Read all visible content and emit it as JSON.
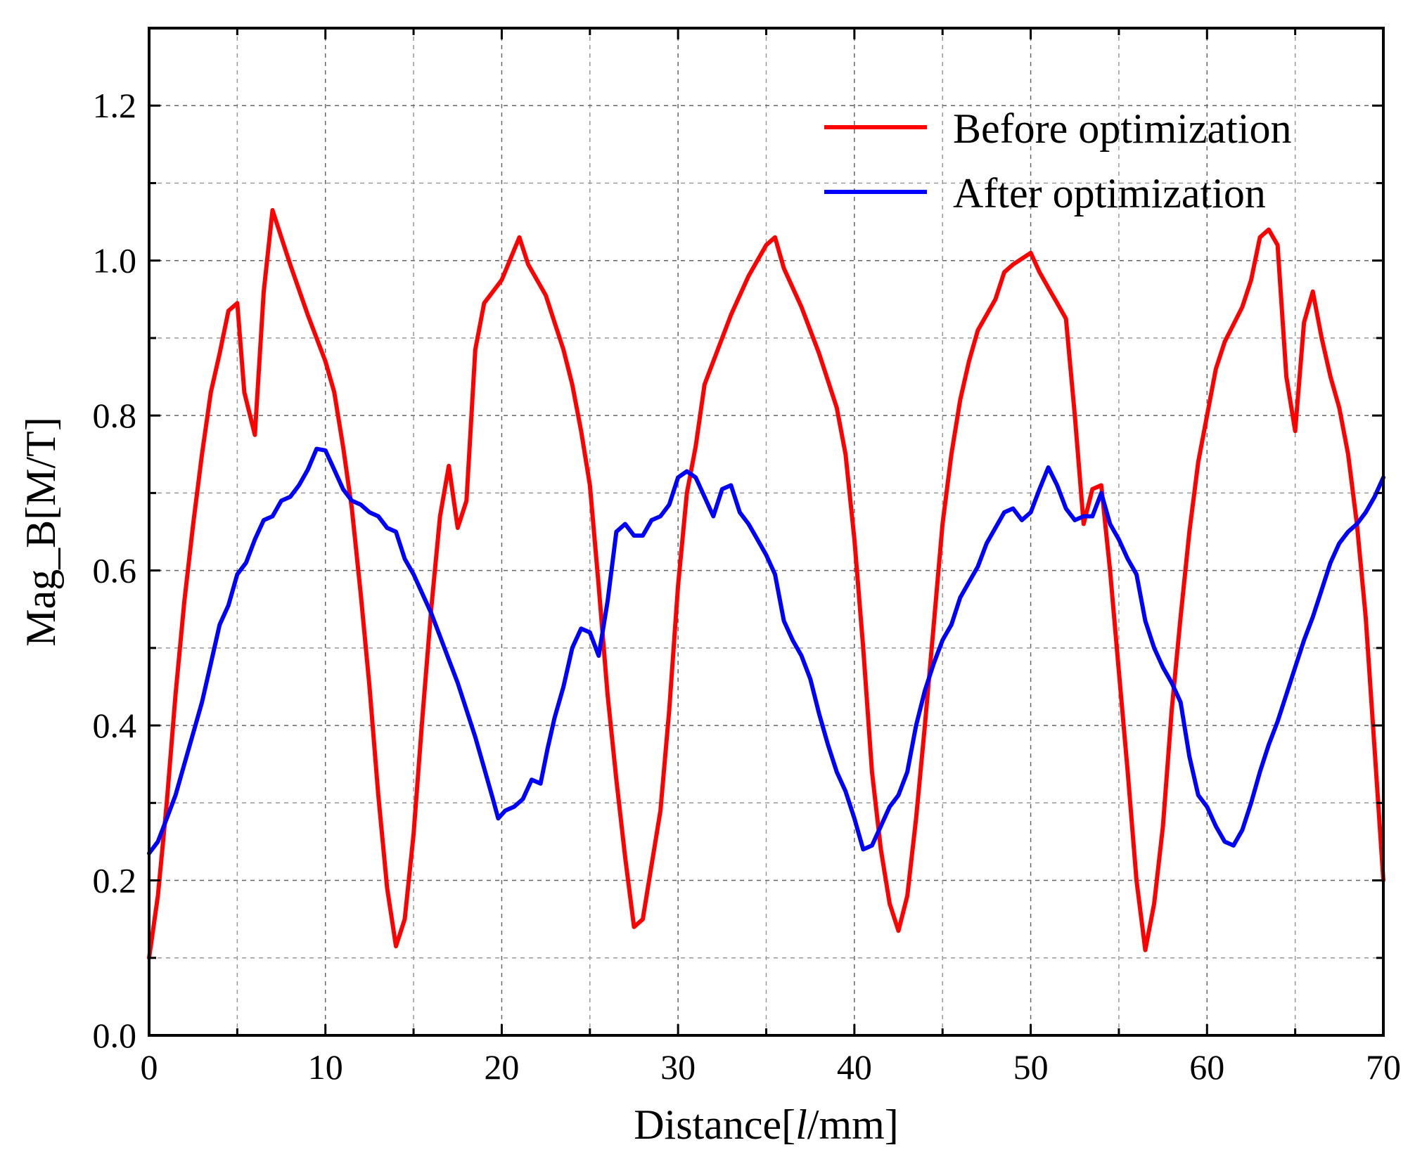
{
  "chart_data": {
    "type": "line",
    "title": "",
    "xlabel_prefix": "Distance[",
    "xlabel_italic": "l",
    "xlabel_suffix": "/mm]",
    "ylabel": "Mag_B[M/T]",
    "xlim": [
      0,
      70
    ],
    "ylim": [
      0,
      1.3
    ],
    "grid": true,
    "legend_position": "top-right",
    "x_ticks": [
      "0",
      "10",
      "20",
      "30",
      "40",
      "50",
      "60",
      "70"
    ],
    "x_tick_values": [
      0,
      10,
      20,
      30,
      40,
      50,
      60,
      70
    ],
    "y_ticks": [
      "0.0",
      "0.2",
      "0.4",
      "0.6",
      "0.8",
      "1.0",
      "1.2"
    ],
    "y_tick_values": [
      0,
      0.2,
      0.4,
      0.6,
      0.8,
      1.0,
      1.2
    ],
    "series": [
      {
        "name": "Before optimization",
        "color": "#ff0000",
        "points": [
          [
            0,
            0.1
          ],
          [
            0.5,
            0.18
          ],
          [
            1,
            0.3
          ],
          [
            1.5,
            0.44
          ],
          [
            2,
            0.56
          ],
          [
            2.5,
            0.66
          ],
          [
            3,
            0.75
          ],
          [
            3.5,
            0.83
          ],
          [
            4,
            0.88
          ],
          [
            4.5,
            0.935
          ],
          [
            5,
            0.945
          ],
          [
            5.4,
            0.83
          ],
          [
            6,
            0.775
          ],
          [
            6.5,
            0.96
          ],
          [
            7,
            1.065
          ],
          [
            7.5,
            1.03
          ],
          [
            8,
            0.995
          ],
          [
            9,
            0.93
          ],
          [
            10,
            0.87
          ],
          [
            10.5,
            0.83
          ],
          [
            11,
            0.76
          ],
          [
            11.5,
            0.68
          ],
          [
            12,
            0.57
          ],
          [
            12.5,
            0.45
          ],
          [
            13,
            0.31
          ],
          [
            13.5,
            0.19
          ],
          [
            14,
            0.115
          ],
          [
            14.5,
            0.15
          ],
          [
            15,
            0.26
          ],
          [
            15.5,
            0.41
          ],
          [
            16,
            0.55
          ],
          [
            16.5,
            0.67
          ],
          [
            17,
            0.735
          ],
          [
            17.5,
            0.655
          ],
          [
            18,
            0.69
          ],
          [
            18.5,
            0.885
          ],
          [
            19,
            0.945
          ],
          [
            20,
            0.975
          ],
          [
            21,
            1.03
          ],
          [
            21.5,
            0.995
          ],
          [
            22,
            0.975
          ],
          [
            22.5,
            0.955
          ],
          [
            23,
            0.92
          ],
          [
            23.5,
            0.885
          ],
          [
            24,
            0.84
          ],
          [
            24.5,
            0.78
          ],
          [
            25,
            0.71
          ],
          [
            25.5,
            0.58
          ],
          [
            26,
            0.44
          ],
          [
            26.5,
            0.33
          ],
          [
            27,
            0.23
          ],
          [
            27.5,
            0.14
          ],
          [
            28,
            0.15
          ],
          [
            28.5,
            0.22
          ],
          [
            29,
            0.29
          ],
          [
            29.5,
            0.42
          ],
          [
            30,
            0.58
          ],
          [
            30.5,
            0.7
          ],
          [
            31,
            0.76
          ],
          [
            31.5,
            0.84
          ],
          [
            32,
            0.87
          ],
          [
            33,
            0.93
          ],
          [
            34,
            0.98
          ],
          [
            35,
            1.02
          ],
          [
            35.5,
            1.03
          ],
          [
            36,
            0.99
          ],
          [
            37,
            0.94
          ],
          [
            38,
            0.88
          ],
          [
            39,
            0.81
          ],
          [
            39.5,
            0.75
          ],
          [
            40,
            0.64
          ],
          [
            40.5,
            0.5
          ],
          [
            41,
            0.34
          ],
          [
            41.5,
            0.24
          ],
          [
            42,
            0.17
          ],
          [
            42.5,
            0.135
          ],
          [
            43,
            0.18
          ],
          [
            43.5,
            0.28
          ],
          [
            44,
            0.4
          ],
          [
            44.5,
            0.53
          ],
          [
            45,
            0.66
          ],
          [
            45.5,
            0.75
          ],
          [
            46,
            0.82
          ],
          [
            46.5,
            0.87
          ],
          [
            47,
            0.91
          ],
          [
            48,
            0.95
          ],
          [
            48.5,
            0.985
          ],
          [
            49,
            0.995
          ],
          [
            50,
            1.01
          ],
          [
            50.5,
            0.985
          ],
          [
            51,
            0.965
          ],
          [
            51.5,
            0.945
          ],
          [
            52,
            0.925
          ],
          [
            52.5,
            0.8
          ],
          [
            53,
            0.66
          ],
          [
            53.5,
            0.705
          ],
          [
            54,
            0.71
          ],
          [
            54.5,
            0.6
          ],
          [
            55,
            0.47
          ],
          [
            55.5,
            0.34
          ],
          [
            56,
            0.2
          ],
          [
            56.5,
            0.11
          ],
          [
            57,
            0.17
          ],
          [
            57.5,
            0.27
          ],
          [
            58,
            0.42
          ],
          [
            58.5,
            0.54
          ],
          [
            59,
            0.65
          ],
          [
            59.5,
            0.74
          ],
          [
            60,
            0.8
          ],
          [
            60.5,
            0.86
          ],
          [
            61,
            0.895
          ],
          [
            62,
            0.94
          ],
          [
            62.5,
            0.975
          ],
          [
            63,
            1.03
          ],
          [
            63.5,
            1.04
          ],
          [
            64,
            1.02
          ],
          [
            64.5,
            0.85
          ],
          [
            65,
            0.78
          ],
          [
            65.5,
            0.92
          ],
          [
            66,
            0.96
          ],
          [
            66.5,
            0.9
          ],
          [
            67,
            0.85
          ],
          [
            67.5,
            0.81
          ],
          [
            68,
            0.75
          ],
          [
            68.5,
            0.66
          ],
          [
            69,
            0.54
          ],
          [
            69.5,
            0.37
          ],
          [
            70,
            0.2
          ]
        ]
      },
      {
        "name": "After optimization",
        "color": "#0000ff",
        "points": [
          [
            0,
            0.235
          ],
          [
            0.5,
            0.25
          ],
          [
            1,
            0.28
          ],
          [
            1.5,
            0.31
          ],
          [
            2,
            0.35
          ],
          [
            2.5,
            0.39
          ],
          [
            3,
            0.43
          ],
          [
            3.5,
            0.48
          ],
          [
            4,
            0.53
          ],
          [
            4.5,
            0.555
          ],
          [
            5,
            0.595
          ],
          [
            5.5,
            0.61
          ],
          [
            6,
            0.64
          ],
          [
            6.5,
            0.665
          ],
          [
            7,
            0.67
          ],
          [
            7.5,
            0.69
          ],
          [
            8,
            0.695
          ],
          [
            8.5,
            0.71
          ],
          [
            9,
            0.73
          ],
          [
            9.5,
            0.757
          ],
          [
            10,
            0.755
          ],
          [
            10.5,
            0.73
          ],
          [
            11,
            0.705
          ],
          [
            11.5,
            0.69
          ],
          [
            12,
            0.685
          ],
          [
            12.5,
            0.675
          ],
          [
            13,
            0.67
          ],
          [
            13.5,
            0.655
          ],
          [
            14,
            0.65
          ],
          [
            14.5,
            0.615
          ],
          [
            15,
            0.595
          ],
          [
            15.5,
            0.57
          ],
          [
            16,
            0.545
          ],
          [
            16.5,
            0.515
          ],
          [
            17,
            0.485
          ],
          [
            17.5,
            0.455
          ],
          [
            18,
            0.42
          ],
          [
            18.5,
            0.385
          ],
          [
            19,
            0.345
          ],
          [
            19.5,
            0.305
          ],
          [
            19.8,
            0.28
          ],
          [
            20.2,
            0.29
          ],
          [
            20.7,
            0.295
          ],
          [
            21.2,
            0.305
          ],
          [
            21.7,
            0.33
          ],
          [
            22.2,
            0.325
          ],
          [
            22.6,
            0.37
          ],
          [
            23,
            0.41
          ],
          [
            23.5,
            0.45
          ],
          [
            24,
            0.5
          ],
          [
            24.5,
            0.525
          ],
          [
            25,
            0.52
          ],
          [
            25.5,
            0.49
          ],
          [
            26,
            0.56
          ],
          [
            26.5,
            0.65
          ],
          [
            27,
            0.66
          ],
          [
            27.5,
            0.645
          ],
          [
            28,
            0.645
          ],
          [
            28.5,
            0.665
          ],
          [
            29,
            0.67
          ],
          [
            29.5,
            0.685
          ],
          [
            30,
            0.72
          ],
          [
            30.5,
            0.728
          ],
          [
            31,
            0.72
          ],
          [
            31.5,
            0.695
          ],
          [
            32,
            0.67
          ],
          [
            32.5,
            0.705
          ],
          [
            33,
            0.71
          ],
          [
            33.5,
            0.675
          ],
          [
            34,
            0.66
          ],
          [
            34.5,
            0.64
          ],
          [
            35,
            0.62
          ],
          [
            35.5,
            0.595
          ],
          [
            36,
            0.535
          ],
          [
            36.5,
            0.51
          ],
          [
            37,
            0.49
          ],
          [
            37.5,
            0.46
          ],
          [
            38,
            0.415
          ],
          [
            38.5,
            0.375
          ],
          [
            39,
            0.34
          ],
          [
            39.5,
            0.315
          ],
          [
            40,
            0.28
          ],
          [
            40.5,
            0.24
          ],
          [
            41,
            0.245
          ],
          [
            41.5,
            0.27
          ],
          [
            42,
            0.295
          ],
          [
            42.5,
            0.31
          ],
          [
            43,
            0.34
          ],
          [
            43.5,
            0.4
          ],
          [
            44,
            0.445
          ],
          [
            44.5,
            0.48
          ],
          [
            45,
            0.51
          ],
          [
            45.5,
            0.53
          ],
          [
            46,
            0.565
          ],
          [
            46.5,
            0.585
          ],
          [
            47,
            0.605
          ],
          [
            47.5,
            0.635
          ],
          [
            48,
            0.655
          ],
          [
            48.5,
            0.675
          ],
          [
            49,
            0.68
          ],
          [
            49.5,
            0.665
          ],
          [
            50,
            0.675
          ],
          [
            50.5,
            0.705
          ],
          [
            51,
            0.733
          ],
          [
            51.5,
            0.71
          ],
          [
            52,
            0.68
          ],
          [
            52.5,
            0.665
          ],
          [
            53,
            0.67
          ],
          [
            53.5,
            0.67
          ],
          [
            54,
            0.7
          ],
          [
            54.5,
            0.66
          ],
          [
            55,
            0.64
          ],
          [
            55.5,
            0.615
          ],
          [
            56,
            0.595
          ],
          [
            56.5,
            0.535
          ],
          [
            57,
            0.5
          ],
          [
            57.5,
            0.475
          ],
          [
            58,
            0.455
          ],
          [
            58.5,
            0.43
          ],
          [
            59,
            0.36
          ],
          [
            59.5,
            0.31
          ],
          [
            60,
            0.295
          ],
          [
            60.5,
            0.27
          ],
          [
            61,
            0.25
          ],
          [
            61.5,
            0.245
          ],
          [
            62,
            0.265
          ],
          [
            62.5,
            0.3
          ],
          [
            63,
            0.34
          ],
          [
            63.5,
            0.375
          ],
          [
            64,
            0.405
          ],
          [
            64.5,
            0.44
          ],
          [
            65,
            0.475
          ],
          [
            65.5,
            0.51
          ],
          [
            66,
            0.54
          ],
          [
            66.5,
            0.575
          ],
          [
            67,
            0.61
          ],
          [
            67.5,
            0.635
          ],
          [
            68,
            0.65
          ],
          [
            68.5,
            0.66
          ],
          [
            69,
            0.675
          ],
          [
            69.5,
            0.695
          ],
          [
            70,
            0.72
          ]
        ]
      }
    ]
  }
}
